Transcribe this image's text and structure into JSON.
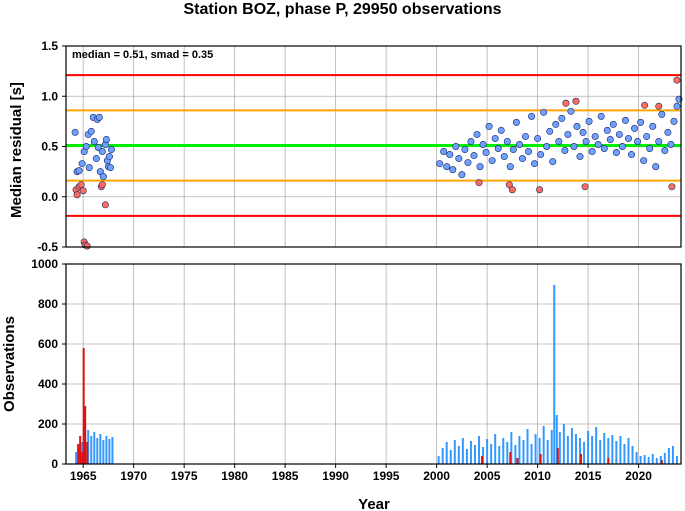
{
  "title": "Station BOZ, phase P, 29950 observations",
  "colors": {
    "median_line": "#00ee00",
    "smad_line": "#ffa500",
    "limit_line": "#ff0000",
    "point_blue": "#6fa0ff",
    "point_red": "#ff6a5a",
    "point_edge": "#1a2a6a",
    "bar_blue": "#3399ff",
    "bar_red": "#dd1111",
    "grid": "#b0b0b0"
  },
  "chart_data": [
    {
      "type": "scatter",
      "ylabel": "Median residual [s]",
      "xlim": [
        1963.3,
        2024.2
      ],
      "ylim": [
        -0.5,
        1.5
      ],
      "yticks": [
        "-0.5",
        "0.0",
        "0.5",
        "1.0",
        "1.5"
      ],
      "annotation": "median = 0.51, smad = 0.35",
      "grid": true,
      "reference_lines": [
        {
          "name": "median",
          "value": 0.51,
          "color": "green"
        },
        {
          "name": "median + 1 smad",
          "value": 0.86,
          "color": "orange"
        },
        {
          "name": "median - 1 smad",
          "value": 0.16,
          "color": "orange"
        },
        {
          "name": "median + 2 smad",
          "value": 1.21,
          "color": "red"
        },
        {
          "name": "median - 2 smad",
          "value": -0.19,
          "color": "red"
        }
      ],
      "points_in": [
        [
          1964.2,
          0.64
        ],
        [
          1964.4,
          0.25
        ],
        [
          1964.6,
          0.26
        ],
        [
          1964.9,
          0.33
        ],
        [
          1965.1,
          0.45
        ],
        [
          1965.3,
          0.5
        ],
        [
          1965.5,
          0.62
        ],
        [
          1965.6,
          0.29
        ],
        [
          1965.8,
          0.65
        ],
        [
          1966.0,
          0.79
        ],
        [
          1966.1,
          0.55
        ],
        [
          1966.3,
          0.38
        ],
        [
          1966.4,
          0.77
        ],
        [
          1966.5,
          0.49
        ],
        [
          1966.6,
          0.79
        ],
        [
          1966.7,
          0.25
        ],
        [
          1966.9,
          0.45
        ],
        [
          1967.0,
          0.2
        ],
        [
          1967.2,
          0.52
        ],
        [
          1967.3,
          0.57
        ],
        [
          1967.4,
          0.36
        ],
        [
          1967.5,
          0.3
        ],
        [
          1967.6,
          0.4
        ],
        [
          1967.7,
          0.29
        ],
        [
          1967.8,
          0.47
        ],
        [
          2000.3,
          0.33
        ],
        [
          2000.7,
          0.45
        ],
        [
          2001.0,
          0.3
        ],
        [
          2001.3,
          0.42
        ],
        [
          2001.6,
          0.27
        ],
        [
          2001.9,
          0.5
        ],
        [
          2002.2,
          0.38
        ],
        [
          2002.5,
          0.22
        ],
        [
          2002.8,
          0.47
        ],
        [
          2003.1,
          0.34
        ],
        [
          2003.4,
          0.55
        ],
        [
          2003.7,
          0.41
        ],
        [
          2004.0,
          0.62
        ],
        [
          2004.3,
          0.3
        ],
        [
          2004.6,
          0.52
        ],
        [
          2004.9,
          0.44
        ],
        [
          2005.2,
          0.7
        ],
        [
          2005.5,
          0.36
        ],
        [
          2005.8,
          0.58
        ],
        [
          2006.1,
          0.48
        ],
        [
          2006.4,
          0.66
        ],
        [
          2006.7,
          0.4
        ],
        [
          2007.0,
          0.55
        ],
        [
          2007.3,
          0.3
        ],
        [
          2007.6,
          0.47
        ],
        [
          2007.9,
          0.74
        ],
        [
          2008.2,
          0.52
        ],
        [
          2008.5,
          0.38
        ],
        [
          2008.8,
          0.6
        ],
        [
          2009.1,
          0.45
        ],
        [
          2009.4,
          0.8
        ],
        [
          2009.7,
          0.33
        ],
        [
          2010.0,
          0.58
        ],
        [
          2010.3,
          0.42
        ],
        [
          2010.6,
          0.84
        ],
        [
          2010.9,
          0.5
        ],
        [
          2011.2,
          0.65
        ],
        [
          2011.5,
          0.35
        ],
        [
          2011.8,
          0.72
        ],
        [
          2012.1,
          0.55
        ],
        [
          2012.4,
          0.78
        ],
        [
          2012.7,
          0.46
        ],
        [
          2013.0,
          0.62
        ],
        [
          2013.3,
          0.85
        ],
        [
          2013.6,
          0.5
        ],
        [
          2013.9,
          0.7
        ],
        [
          2014.2,
          0.4
        ],
        [
          2014.5,
          0.64
        ],
        [
          2014.8,
          0.55
        ],
        [
          2015.1,
          0.75
        ],
        [
          2015.4,
          0.45
        ],
        [
          2015.7,
          0.6
        ],
        [
          2016.0,
          0.52
        ],
        [
          2016.3,
          0.8
        ],
        [
          2016.6,
          0.48
        ],
        [
          2016.9,
          0.66
        ],
        [
          2017.2,
          0.57
        ],
        [
          2017.5,
          0.72
        ],
        [
          2017.8,
          0.44
        ],
        [
          2018.1,
          0.62
        ],
        [
          2018.4,
          0.5
        ],
        [
          2018.7,
          0.76
        ],
        [
          2019.0,
          0.58
        ],
        [
          2019.3,
          0.42
        ],
        [
          2019.6,
          0.68
        ],
        [
          2019.9,
          0.55
        ],
        [
          2020.2,
          0.74
        ],
        [
          2020.5,
          0.36
        ],
        [
          2020.8,
          0.6
        ],
        [
          2021.1,
          0.48
        ],
        [
          2021.4,
          0.7
        ],
        [
          2021.7,
          0.3
        ],
        [
          2022.0,
          0.55
        ],
        [
          2022.3,
          0.82
        ],
        [
          2022.6,
          0.46
        ],
        [
          2022.9,
          0.64
        ],
        [
          2023.2,
          0.52
        ],
        [
          2023.5,
          0.75
        ],
        [
          2023.8,
          0.9
        ],
        [
          2024.0,
          0.97
        ]
      ],
      "points_out": [
        [
          1964.3,
          0.07
        ],
        [
          1964.4,
          0.02
        ],
        [
          1964.6,
          0.1
        ],
        [
          1964.8,
          0.12
        ],
        [
          1965.0,
          0.06
        ],
        [
          1965.1,
          -0.45
        ],
        [
          1965.2,
          -0.48
        ],
        [
          1965.4,
          -0.49
        ],
        [
          1966.8,
          0.1
        ],
        [
          1966.9,
          0.12
        ],
        [
          1967.2,
          -0.08
        ],
        [
          2004.2,
          0.14
        ],
        [
          2007.2,
          0.12
        ],
        [
          2007.5,
          0.07
        ],
        [
          2010.2,
          0.07
        ],
        [
          2012.8,
          0.93
        ],
        [
          2013.8,
          0.95
        ],
        [
          2014.7,
          0.1
        ],
        [
          2020.6,
          0.91
        ],
        [
          2022.0,
          0.9
        ],
        [
          2023.3,
          0.1
        ],
        [
          2023.8,
          1.16
        ]
      ]
    },
    {
      "type": "bar",
      "xlabel": "Year",
      "ylabel": "Observations",
      "xlim": [
        1963.3,
        2024.2
      ],
      "ylim": [
        0,
        1000
      ],
      "xticks": [
        "1965",
        "1970",
        "1975",
        "1980",
        "1985",
        "1990",
        "1995",
        "2000",
        "2005",
        "2010",
        "2015",
        "2020"
      ],
      "yticks": [
        "0",
        "200",
        "400",
        "600",
        "800",
        "1000"
      ],
      "grid": true,
      "bars_blue": [
        [
          1964.3,
          60
        ],
        [
          1964.6,
          90
        ],
        [
          1964.9,
          110
        ],
        [
          1965.2,
          150
        ],
        [
          1965.5,
          170
        ],
        [
          1965.8,
          140
        ],
        [
          1966.1,
          160
        ],
        [
          1966.4,
          130
        ],
        [
          1966.7,
          150
        ],
        [
          1967.0,
          120
        ],
        [
          1967.3,
          140
        ],
        [
          1967.6,
          125
        ],
        [
          1967.9,
          135
        ],
        [
          2000.2,
          40
        ],
        [
          2000.6,
          80
        ],
        [
          2001.0,
          110
        ],
        [
          2001.4,
          70
        ],
        [
          2001.8,
          120
        ],
        [
          2002.2,
          90
        ],
        [
          2002.6,
          130
        ],
        [
          2003.0,
          75
        ],
        [
          2003.4,
          115
        ],
        [
          2003.8,
          95
        ],
        [
          2004.2,
          140
        ],
        [
          2004.6,
          85
        ],
        [
          2005.0,
          125
        ],
        [
          2005.4,
          100
        ],
        [
          2005.8,
          150
        ],
        [
          2006.2,
          90
        ],
        [
          2006.6,
          130
        ],
        [
          2007.0,
          110
        ],
        [
          2007.4,
          160
        ],
        [
          2007.8,
          95
        ],
        [
          2008.2,
          140
        ],
        [
          2008.6,
          120
        ],
        [
          2009.0,
          175
        ],
        [
          2009.4,
          100
        ],
        [
          2009.8,
          150
        ],
        [
          2010.2,
          130
        ],
        [
          2010.6,
          190
        ],
        [
          2011.0,
          120
        ],
        [
          2011.4,
          170
        ],
        [
          2011.65,
          895
        ],
        [
          2011.9,
          245
        ],
        [
          2012.2,
          160
        ],
        [
          2012.6,
          200
        ],
        [
          2013.0,
          140
        ],
        [
          2013.4,
          180
        ],
        [
          2013.8,
          150
        ],
        [
          2014.2,
          130
        ],
        [
          2014.6,
          110
        ],
        [
          2015.0,
          165
        ],
        [
          2015.4,
          140
        ],
        [
          2015.8,
          185
        ],
        [
          2016.2,
          120
        ],
        [
          2016.6,
          155
        ],
        [
          2017.0,
          130
        ],
        [
          2017.4,
          145
        ],
        [
          2017.8,
          115
        ],
        [
          2018.2,
          140
        ],
        [
          2018.6,
          100
        ],
        [
          2019.0,
          130
        ],
        [
          2019.4,
          90
        ],
        [
          2019.8,
          60
        ],
        [
          2020.2,
          40
        ],
        [
          2020.6,
          45
        ],
        [
          2021.0,
          35
        ],
        [
          2021.4,
          50
        ],
        [
          2021.8,
          30
        ],
        [
          2022.2,
          40
        ],
        [
          2022.6,
          55
        ],
        [
          2023.0,
          80
        ],
        [
          2023.4,
          90
        ],
        [
          2023.8,
          40
        ]
      ],
      "bars_red": [
        [
          1964.5,
          100
        ],
        [
          1964.7,
          140
        ],
        [
          1964.9,
          60
        ],
        [
          1965.05,
          580
        ],
        [
          1965.2,
          290
        ],
        [
          1965.4,
          110
        ],
        [
          2004.5,
          40
        ],
        [
          2007.3,
          60
        ],
        [
          2008.0,
          30
        ],
        [
          2010.3,
          50
        ],
        [
          2012.0,
          80
        ],
        [
          2014.3,
          50
        ],
        [
          2017.0,
          30
        ],
        [
          2022.3,
          20
        ]
      ]
    }
  ]
}
